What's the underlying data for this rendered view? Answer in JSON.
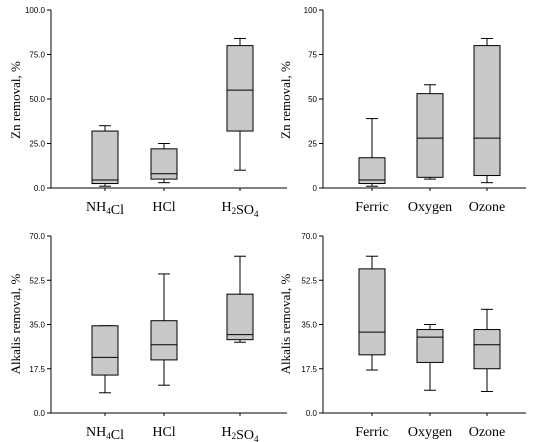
{
  "chart_data": [
    {
      "type": "box",
      "ylabel": "Zn removal, %",
      "ylim": [
        0,
        100
      ],
      "yticks": [
        "0.0",
        "25.0",
        "50.0",
        "75.0",
        "100.0"
      ],
      "categories": [
        "NH4Cl",
        "HCl",
        "H2SO4"
      ],
      "boxes": [
        {
          "min": 1,
          "q1": 2.5,
          "median": 4.5,
          "q3": 32,
          "max": 35
        },
        {
          "min": 3,
          "q1": 5,
          "median": 8,
          "q3": 22,
          "max": 25
        },
        {
          "min": 10,
          "q1": 32,
          "median": 55,
          "q3": 80,
          "max": 84
        }
      ]
    },
    {
      "type": "box",
      "ylabel": "Zn removal, %",
      "ylim": [
        0,
        100
      ],
      "yticks": [
        "0",
        "25",
        "50",
        "75",
        "100"
      ],
      "categories": [
        "Ferric",
        "Oxygen",
        "Ozone"
      ],
      "boxes": [
        {
          "min": 1,
          "q1": 2.5,
          "median": 4.5,
          "q3": 17,
          "max": 39
        },
        {
          "min": 5,
          "q1": 6,
          "median": 28,
          "q3": 53,
          "max": 58
        },
        {
          "min": 3,
          "q1": 7,
          "median": 28,
          "q3": 80,
          "max": 84
        }
      ]
    },
    {
      "type": "box",
      "ylabel": "Alkalis removal, %",
      "ylim": [
        0,
        70
      ],
      "yticks": [
        "0.0",
        "17.5",
        "35.0",
        "52.5",
        "70.0"
      ],
      "categories": [
        "NH4Cl",
        "HCl",
        "H2SO4"
      ],
      "boxes": [
        {
          "min": 8,
          "q1": 15,
          "median": 22,
          "q3": 34.5,
          "max": 34.5
        },
        {
          "min": 11,
          "q1": 21,
          "median": 27,
          "q3": 36.5,
          "max": 55
        },
        {
          "min": 28,
          "q1": 29,
          "median": 31,
          "q3": 47,
          "max": 62
        }
      ]
    },
    {
      "type": "box",
      "ylabel": "Alkalis removal, %",
      "ylim": [
        0,
        70
      ],
      "yticks": [
        "0.0",
        "17.5",
        "35.0",
        "52.5",
        "70.0"
      ],
      "categories": [
        "Ferric",
        "Oxygen",
        "Ozone"
      ],
      "boxes": [
        {
          "min": 17,
          "q1": 23,
          "median": 32,
          "q3": 57,
          "max": 62
        },
        {
          "min": 9,
          "q1": 20,
          "median": 30,
          "q3": 33,
          "max": 35
        },
        {
          "min": 8.5,
          "q1": 17.5,
          "median": 27,
          "q3": 33,
          "max": 41
        }
      ]
    }
  ],
  "style": {
    "box_fill": "#c8c8c8",
    "stroke": "#000000",
    "background": "#ffffff"
  }
}
